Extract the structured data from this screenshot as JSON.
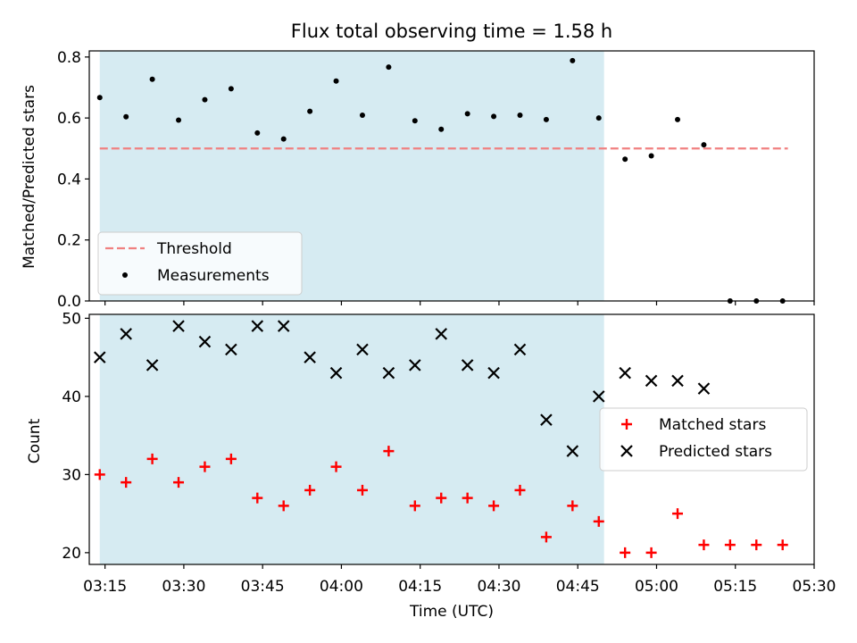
{
  "figure": {
    "title": "Flux total observing time = 1.58 h"
  },
  "colors": {
    "shade": "#add8e6",
    "threshold": "#f08080",
    "measurement": "#000000",
    "matched": "#ff0000",
    "predicted": "#000000"
  },
  "chart_data": [
    {
      "type": "scatter",
      "panel": "ratio",
      "ylabel": "Matched/Predicted stars",
      "xlabel": "",
      "ylim": [
        0,
        0.82
      ],
      "yticks": [
        0.0,
        0.2,
        0.4,
        0.6,
        0.8
      ],
      "ytick_labels": [
        "0.0",
        "0.2",
        "0.4",
        "0.6",
        "0.8"
      ],
      "shaded_span": [
        "03:14",
        "04:50"
      ],
      "legend": {
        "placement": "lower-left",
        "entries": [
          {
            "label": "Threshold",
            "marker": "dashed-line"
          },
          {
            "label": "Measurements",
            "marker": "dot"
          }
        ]
      },
      "threshold": {
        "name": "Threshold",
        "value": 0.5,
        "x_start": "03:14",
        "x_end": "05:25"
      },
      "series": [
        {
          "name": "Measurements",
          "x": [
            "03:14",
            "03:19",
            "03:24",
            "03:29",
            "03:34",
            "03:39",
            "03:44",
            "03:49",
            "03:54",
            "03:59",
            "04:04",
            "04:09",
            "04:14",
            "04:19",
            "04:24",
            "04:29",
            "04:34",
            "04:39",
            "04:44",
            "04:49",
            "04:54",
            "04:59",
            "05:04",
            "05:09",
            "05:14",
            "05:19",
            "05:24"
          ],
          "values": [
            0.667,
            0.604,
            0.727,
            0.593,
            0.66,
            0.696,
            0.551,
            0.531,
            0.622,
            0.721,
            0.609,
            0.767,
            0.591,
            0.563,
            0.614,
            0.605,
            0.609,
            0.595,
            0.788,
            0.6,
            0.465,
            0.476,
            0.595,
            0.512,
            0.0,
            0.0,
            0.0
          ]
        }
      ]
    },
    {
      "type": "scatter",
      "panel": "count",
      "ylabel": "Count",
      "xlabel": "Time (UTC)",
      "ylim": [
        18.5,
        50.5
      ],
      "yticks": [
        20,
        30,
        40,
        50
      ],
      "ytick_labels": [
        "20",
        "30",
        "40",
        "50"
      ],
      "xlim": [
        "03:12",
        "05:30"
      ],
      "xticks": [
        "03:15",
        "03:30",
        "03:45",
        "04:00",
        "04:15",
        "04:30",
        "04:45",
        "05:00",
        "05:15",
        "05:30"
      ],
      "shaded_span": [
        "03:14",
        "04:50"
      ],
      "legend": {
        "placement": "center-right",
        "entries": [
          {
            "label": "Matched stars",
            "marker": "plus"
          },
          {
            "label": "Predicted stars",
            "marker": "x"
          }
        ]
      },
      "series": [
        {
          "name": "Matched stars",
          "x": [
            "03:14",
            "03:19",
            "03:24",
            "03:29",
            "03:34",
            "03:39",
            "03:44",
            "03:49",
            "03:54",
            "03:59",
            "04:04",
            "04:09",
            "04:14",
            "04:19",
            "04:24",
            "04:29",
            "04:34",
            "04:39",
            "04:44",
            "04:49",
            "04:54",
            "04:59",
            "05:04",
            "05:09",
            "05:14",
            "05:19",
            "05:24"
          ],
          "values": [
            30,
            29,
            32,
            29,
            31,
            32,
            27,
            26,
            28,
            31,
            28,
            33,
            26,
            27,
            27,
            26,
            28,
            22,
            26,
            24,
            20,
            20,
            25,
            21,
            21,
            21,
            21
          ]
        },
        {
          "name": "Predicted stars",
          "x": [
            "03:14",
            "03:19",
            "03:24",
            "03:29",
            "03:34",
            "03:39",
            "03:44",
            "03:49",
            "03:54",
            "03:59",
            "04:04",
            "04:09",
            "04:14",
            "04:19",
            "04:24",
            "04:29",
            "04:34",
            "04:39",
            "04:44",
            "04:49",
            "04:54",
            "04:59",
            "05:04",
            "05:09"
          ],
          "values": [
            45,
            48,
            44,
            49,
            47,
            46,
            49,
            49,
            45,
            43,
            46,
            43,
            44,
            48,
            44,
            43,
            46,
            37,
            33,
            40,
            43,
            42,
            42,
            41
          ]
        }
      ]
    }
  ]
}
